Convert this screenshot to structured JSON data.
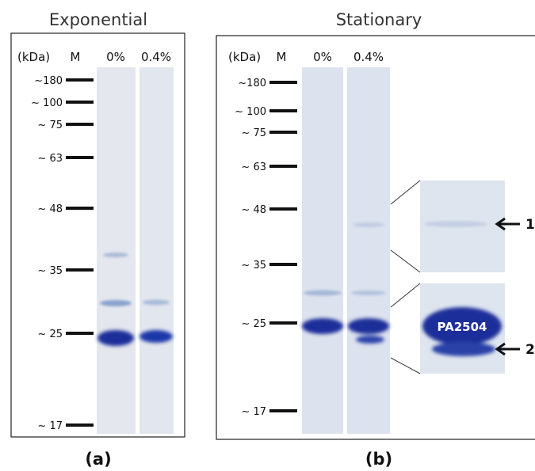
{
  "panels": [
    {
      "title": "Exponential",
      "label": "(a)",
      "header": {
        "unit": "(kDa)",
        "marker": "M",
        "lanes": [
          "0%",
          "0.4%"
        ]
      },
      "markers": [
        "~180",
        "~ 100",
        "~ 75",
        "~ 63",
        "~ 48",
        "~ 35",
        "~ 25",
        "~ 17"
      ]
    },
    {
      "title": "Stationary",
      "label": "(b)",
      "header": {
        "unit": "(kDa)",
        "marker": "M",
        "lanes": [
          "0%",
          "0.4%"
        ]
      },
      "markers": [
        "~180",
        "~ 100",
        "~ 75",
        "~ 63",
        "~ 48",
        "~ 35",
        "~ 25",
        "~ 17"
      ],
      "inset": {
        "band_label": "PA2504",
        "arrows": [
          "1",
          "2"
        ]
      }
    }
  ]
}
